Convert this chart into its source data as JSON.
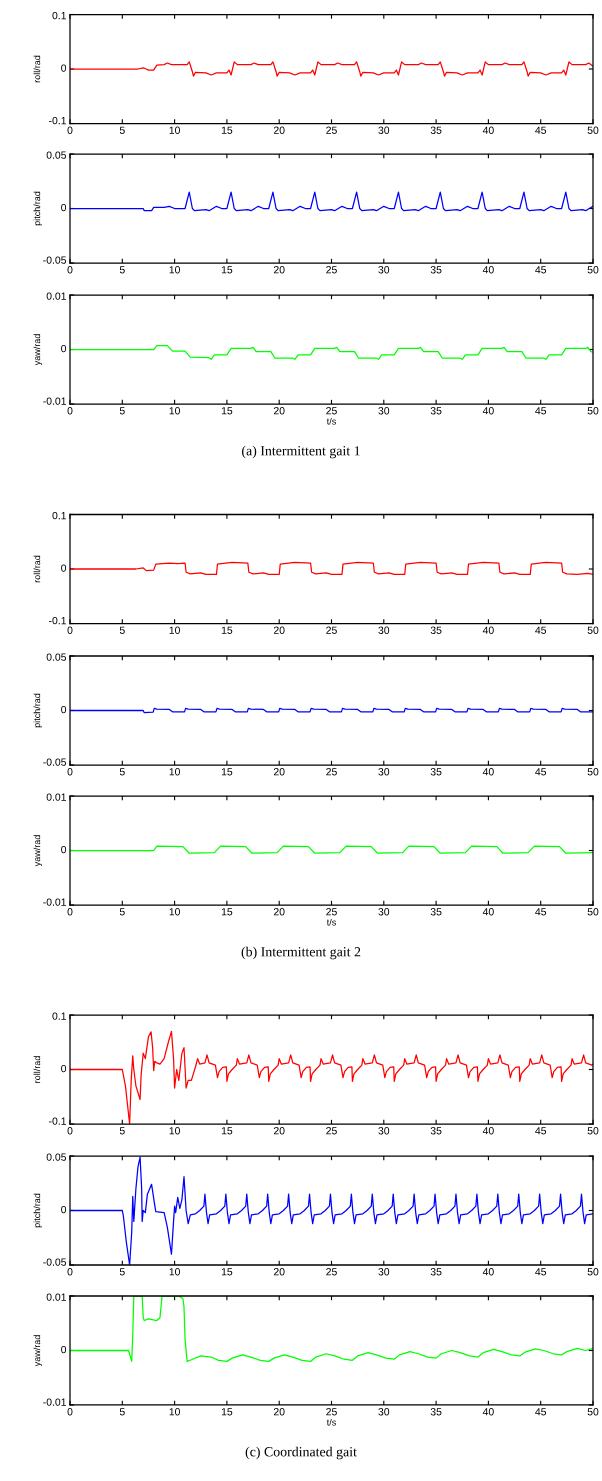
{
  "chart_data": [
    {
      "type": "line",
      "ylabel": "roll/rad",
      "xlim": [
        0,
        50
      ],
      "xticks": [
        0,
        5,
        10,
        15,
        20,
        25,
        30,
        35,
        40,
        45,
        50
      ],
      "ylim": [
        -0.1,
        0.1
      ],
      "yticks": [
        -0.1,
        0,
        0.1
      ],
      "series": [
        {
          "color": "#ff0000",
          "x": [
            0,
            6.5,
            7,
            7.3,
            7.5,
            8,
            8.3,
            9,
            9.3,
            9.7,
            11.2,
            11.4,
            11.7,
            11.8,
            12,
            13,
            13.5,
            14,
            15,
            15.2,
            15.4,
            15.7,
            16,
            17.3,
            17.6,
            18,
            19.2,
            19.4,
            19.7,
            19.8,
            20,
            21,
            21.5,
            22,
            23,
            23.2,
            23.4,
            23.7,
            24,
            25.3,
            25.6,
            26,
            27.2,
            27.4,
            27.7,
            27.8,
            28,
            29,
            29.5,
            30,
            31,
            31.2,
            31.4,
            31.7,
            32,
            33.3,
            33.6,
            34,
            35.2,
            35.4,
            35.7,
            35.8,
            36,
            37,
            37.5,
            38,
            39,
            39.2,
            39.4,
            39.7,
            40,
            41.3,
            41.6,
            42,
            43.2,
            43.4,
            43.7,
            43.8,
            44,
            45,
            45.5,
            46,
            47,
            47.2,
            47.4,
            47.7,
            48,
            49.3,
            49.6,
            50
          ],
          "values": [
            0,
            0,
            0.002,
            0,
            -0.002,
            -0.002,
            0.007,
            0.008,
            0.011,
            0.008,
            0.008,
            0.013,
            -0.005,
            -0.013,
            -0.006,
            -0.007,
            -0.011,
            -0.007,
            -0.007,
            -0.002,
            -0.011,
            0.013,
            0.008,
            0.008,
            0.011,
            0.008,
            0.008,
            0.013,
            -0.005,
            -0.013,
            -0.006,
            -0.007,
            -0.011,
            -0.007,
            -0.007,
            -0.002,
            -0.011,
            0.013,
            0.008,
            0.008,
            0.011,
            0.008,
            0.008,
            0.013,
            -0.005,
            -0.013,
            -0.006,
            -0.007,
            -0.011,
            -0.007,
            -0.007,
            -0.002,
            -0.011,
            0.013,
            0.008,
            0.008,
            0.011,
            0.008,
            0.008,
            0.013,
            -0.005,
            -0.013,
            -0.006,
            -0.007,
            -0.011,
            -0.007,
            -0.007,
            -0.002,
            -0.011,
            0.013,
            0.008,
            0.008,
            0.011,
            0.008,
            0.008,
            0.013,
            -0.005,
            -0.013,
            -0.006,
            -0.007,
            -0.011,
            -0.007,
            -0.007,
            -0.002,
            -0.011,
            0.013,
            0.008,
            0.008,
            0.011,
            0.005
          ]
        }
      ]
    },
    {
      "type": "line",
      "ylabel": "pitch/rad",
      "xlim": [
        0,
        50
      ],
      "xticks": [
        0,
        5,
        10,
        15,
        20,
        25,
        30,
        35,
        40,
        45,
        50
      ],
      "ylim": [
        -0.05,
        0.05
      ],
      "yticks": [
        -0.05,
        0,
        0.05
      ],
      "series": [
        {
          "color": "#0000ff",
          "x": [
            0,
            7,
            7.1,
            7.8,
            8,
            9,
            9.5,
            10,
            11,
            11.4,
            11.7,
            11.9,
            13,
            13.3,
            14,
            14.5,
            15,
            15.4,
            15.7,
            15.9,
            17,
            17.3,
            18,
            18.5,
            19,
            19.4,
            19.7,
            19.9,
            21,
            21.3,
            22,
            22.5,
            23,
            23.4,
            23.7,
            23.9,
            25,
            25.3,
            26,
            26.5,
            27,
            27.4,
            27.7,
            27.9,
            29,
            29.3,
            30,
            30.5,
            31,
            31.4,
            31.7,
            31.9,
            33,
            33.3,
            34,
            34.5,
            35,
            35.4,
            35.7,
            35.9,
            37,
            37.3,
            38,
            38.5,
            39,
            39.4,
            39.7,
            39.9,
            41,
            41.3,
            42,
            42.5,
            43,
            43.4,
            43.7,
            43.9,
            45,
            45.3,
            46,
            46.5,
            47,
            47.4,
            47.7,
            47.9,
            49,
            49.3,
            50
          ],
          "values": [
            0,
            0,
            -0.002,
            -0.002,
            0.001,
            0.001,
            0.002,
            0,
            0,
            0.015,
            0,
            -0.002,
            -0.001,
            -0.002,
            0.002,
            0,
            0,
            0.015,
            0,
            -0.002,
            -0.001,
            -0.002,
            0.002,
            0,
            0,
            0.015,
            0,
            -0.002,
            -0.001,
            -0.002,
            0.002,
            0,
            0,
            0.015,
            0,
            -0.002,
            -0.001,
            -0.002,
            0.002,
            0,
            0,
            0.015,
            0,
            -0.002,
            -0.001,
            -0.002,
            0.002,
            0,
            0,
            0.015,
            0,
            -0.002,
            -0.001,
            -0.002,
            0.002,
            0,
            0,
            0.015,
            0,
            -0.002,
            -0.001,
            -0.002,
            0.002,
            0,
            0,
            0.015,
            0,
            -0.002,
            -0.001,
            -0.002,
            0.002,
            0,
            0,
            0.015,
            0,
            -0.002,
            -0.001,
            -0.002,
            0.002,
            0,
            0,
            0.015,
            0,
            -0.002,
            -0.001,
            -0.002,
            0.002
          ]
        }
      ]
    },
    {
      "type": "line",
      "ylabel": "yaw/rad",
      "xlabel": "t/s",
      "annotations": [
        "(a) Intermittent gait 1"
      ],
      "xlim": [
        0,
        50
      ],
      "xticks": [
        0,
        5,
        10,
        15,
        20,
        25,
        30,
        35,
        40,
        45,
        50
      ],
      "ylim": [
        -0.01,
        0.01
      ],
      "yticks": [
        -0.01,
        0,
        0.01
      ],
      "series": [
        {
          "color": "#00ff00",
          "x": [
            0,
            8,
            8.3,
            9.3,
            9.8,
            11,
            11.5,
            13.3,
            13.5,
            13.8,
            15,
            15.4,
            17.3,
            17.5,
            17.8,
            19.2,
            19.6,
            21.3,
            21.5,
            21.8,
            23,
            23.4,
            25.3,
            25.5,
            25.8,
            27.2,
            27.6,
            29.3,
            29.5,
            29.8,
            31,
            31.4,
            33.3,
            33.5,
            33.8,
            35.2,
            35.6,
            37.3,
            37.5,
            37.8,
            39,
            39.4,
            41.3,
            41.5,
            41.8,
            43.2,
            43.6,
            45.3,
            45.5,
            45.8,
            47,
            47.4,
            49.3,
            49.5,
            49.8,
            50
          ],
          "values": [
            0,
            0,
            0.0007,
            0.0007,
            -0.0003,
            -0.0003,
            -0.0014,
            -0.0015,
            -0.0018,
            -0.001,
            -0.001,
            0.0002,
            0.0002,
            0.0004,
            -0.0004,
            -0.0004,
            -0.0016,
            -0.0016,
            -0.0018,
            -0.001,
            -0.001,
            0.0002,
            0.0002,
            0.0004,
            -0.0004,
            -0.0004,
            -0.0016,
            -0.0016,
            -0.0018,
            -0.001,
            -0.001,
            0.0002,
            0.0002,
            0.0004,
            -0.0004,
            -0.0004,
            -0.0016,
            -0.0016,
            -0.0018,
            -0.001,
            -0.001,
            0.0002,
            0.0002,
            0.0004,
            -0.0004,
            -0.0004,
            -0.0016,
            -0.0016,
            -0.0018,
            -0.001,
            -0.001,
            0.0002,
            0.0002,
            0.0004,
            -0.0004,
            -0.0005
          ]
        }
      ]
    },
    {
      "type": "line",
      "ylabel": "roll/rad",
      "xlim": [
        0,
        50
      ],
      "xticks": [
        0,
        5,
        10,
        15,
        20,
        25,
        30,
        35,
        40,
        45,
        50
      ],
      "ylim": [
        -0.1,
        0.1
      ],
      "yticks": [
        -0.1,
        0,
        0.1
      ],
      "series": [
        {
          "color": "#ff0000",
          "x": [
            0,
            6.3,
            7,
            7.3,
            8,
            8.2,
            9.5,
            10.3,
            11,
            11.1,
            11.5,
            12.5,
            13,
            14,
            14.1,
            15.5,
            17,
            17.1,
            17.5,
            18.5,
            19,
            20,
            20.1,
            21.5,
            23,
            23.1,
            23.5,
            24.5,
            25,
            26,
            26.1,
            27.5,
            29,
            29.1,
            29.5,
            30.5,
            31,
            32,
            32.1,
            33.5,
            35,
            35.1,
            35.5,
            36.5,
            37,
            38,
            38.1,
            39.5,
            41,
            41.1,
            41.5,
            42.5,
            43,
            44,
            44.1,
            45.5,
            47,
            47.1,
            47.5,
            48.5,
            49.5,
            50
          ],
          "values": [
            0,
            0,
            0.002,
            -0.003,
            -0.002,
            0.009,
            0.011,
            0.01,
            0.011,
            -0.006,
            -0.009,
            -0.007,
            -0.01,
            -0.01,
            0.009,
            0.012,
            0.011,
            -0.006,
            -0.009,
            -0.007,
            -0.01,
            -0.01,
            0.009,
            0.012,
            0.011,
            -0.006,
            -0.009,
            -0.007,
            -0.01,
            -0.01,
            0.009,
            0.012,
            0.011,
            -0.006,
            -0.009,
            -0.007,
            -0.01,
            -0.01,
            0.009,
            0.012,
            0.011,
            -0.006,
            -0.009,
            -0.007,
            -0.01,
            -0.01,
            0.009,
            0.012,
            0.011,
            -0.006,
            -0.009,
            -0.007,
            -0.01,
            -0.01,
            0.009,
            0.012,
            0.011,
            -0.006,
            -0.009,
            -0.01,
            -0.008,
            -0.01
          ]
        }
      ]
    },
    {
      "type": "line",
      "ylabel": "pitch/rad",
      "xlim": [
        0,
        50
      ],
      "xticks": [
        0,
        5,
        10,
        15,
        20,
        25,
        30,
        35,
        40,
        45,
        50
      ],
      "ylim": [
        -0.05,
        0.05
      ],
      "yticks": [
        -0.05,
        0,
        0.05
      ],
      "series": [
        {
          "color": "#0000ff",
          "x": [
            0,
            7,
            7.1,
            7.95,
            8.05,
            8.3,
            9.5,
            9.8,
            10.95,
            11.05,
            11.3,
            12.5,
            12.8,
            13.95,
            14.05,
            14.3,
            15.5,
            15.8,
            16.95,
            17.05,
            17.3,
            18.5,
            18.8,
            19.95,
            20.05,
            20.3,
            21.5,
            21.8,
            22.95,
            23.05,
            23.3,
            24.5,
            24.8,
            25.95,
            26.05,
            26.3,
            27.5,
            27.8,
            28.95,
            29.05,
            29.3,
            30.5,
            30.8,
            31.95,
            32.05,
            32.3,
            33.5,
            33.8,
            34.95,
            35.05,
            35.3,
            36.5,
            36.8,
            37.95,
            38.05,
            38.3,
            39.5,
            39.8,
            40.95,
            41.05,
            41.3,
            42.5,
            42.8,
            43.95,
            44.05,
            44.3,
            45.5,
            45.8,
            46.95,
            47.05,
            47.3,
            48.5,
            48.8,
            49.95
          ],
          "values": [
            0,
            0,
            -0.002,
            -0.0015,
            0.002,
            0.0012,
            0.001,
            -0.0012,
            -0.0012,
            0.002,
            0.0012,
            0.001,
            -0.0012,
            -0.0012,
            0.002,
            0.0012,
            0.001,
            -0.0012,
            -0.0012,
            0.002,
            0.0012,
            0.001,
            -0.0012,
            -0.0012,
            0.002,
            0.0012,
            0.001,
            -0.0012,
            -0.0012,
            0.002,
            0.0012,
            0.001,
            -0.0012,
            -0.0012,
            0.002,
            0.0012,
            0.001,
            -0.0012,
            -0.0012,
            0.002,
            0.0012,
            0.001,
            -0.0012,
            -0.0012,
            0.002,
            0.0012,
            0.001,
            -0.0012,
            -0.0012,
            0.002,
            0.0012,
            0.001,
            -0.0012,
            -0.0012,
            0.002,
            0.0012,
            0.001,
            -0.0012,
            -0.0012,
            0.002,
            0.0012,
            0.001,
            -0.0012,
            -0.0012,
            0.002,
            0.0012,
            0.001,
            -0.0012,
            -0.0012,
            0.002,
            0.0012,
            0.001,
            -0.0012,
            -0.0012
          ]
        }
      ]
    },
    {
      "type": "line",
      "ylabel": "yaw/rad",
      "xlabel": "t/s",
      "annotations": [
        "(b) Intermittent gait 2"
      ],
      "xlim": [
        0,
        50
      ],
      "xticks": [
        0,
        5,
        10,
        15,
        20,
        25,
        30,
        35,
        40,
        45,
        50
      ],
      "ylim": [
        -0.01,
        0.01
      ],
      "yticks": [
        -0.01,
        0,
        0.01
      ],
      "series": [
        {
          "color": "#00ff00",
          "x": [
            0,
            8,
            8.3,
            10.8,
            11.4,
            13.8,
            14.4,
            16.8,
            17.4,
            19.8,
            20.4,
            22.8,
            23.4,
            25.8,
            26.4,
            28.8,
            29.4,
            31.8,
            32.4,
            34.8,
            35.4,
            37.8,
            38.4,
            40.8,
            41.4,
            43.8,
            44.4,
            46.8,
            47.4,
            50
          ],
          "values": [
            0,
            0,
            0.0008,
            0.0007,
            -0.0005,
            -0.0004,
            0.0008,
            0.0007,
            -0.0005,
            -0.0004,
            0.0008,
            0.0007,
            -0.0005,
            -0.0004,
            0.0008,
            0.0007,
            -0.0005,
            -0.0004,
            0.0008,
            0.0007,
            -0.0005,
            -0.0004,
            0.0008,
            0.0007,
            -0.0005,
            -0.0004,
            0.0008,
            0.0007,
            -0.0005,
            -0.0004
          ]
        }
      ]
    },
    {
      "type": "line",
      "ylabel": "roll/rad",
      "xlim": [
        0,
        50
      ],
      "xticks": [
        0,
        5,
        10,
        15,
        20,
        25,
        30,
        35,
        40,
        45,
        50
      ],
      "ylim": [
        -0.1,
        0.1
      ],
      "yticks": [
        -0.1,
        0,
        0.1
      ],
      "series": [
        {
          "color": "#ff0000",
          "x": [
            0,
            5.0,
            5.3,
            5.7,
            5.85,
            6.0,
            6.1,
            6.3,
            6.7,
            6.8,
            7.0,
            7.2,
            7.5,
            7.75,
            7.9,
            8.0,
            8.1,
            8.3,
            8.6,
            9.0,
            9.4,
            9.7,
            9.9,
            10.0,
            10.2,
            10.4,
            10.7,
            10.9,
            11.1,
            11.3,
            11.6,
            12.0,
            12.2,
            12.4,
            12.9,
            13.1,
            13.3,
            13.9,
            14.1,
            14.25,
            14.6,
            14.95,
            15,
            15.15,
            15.5,
            15.9,
            16,
            16.2,
            16.9,
            17.1,
            17.3,
            17.9,
            18.1,
            18.25,
            18.6,
            18.95,
            19,
            19.15,
            19.5,
            19.9,
            20,
            20.2,
            20.9,
            21.1,
            21.3,
            21.9,
            22.1,
            22.25,
            22.6,
            22.95,
            23,
            23.15,
            23.5,
            23.9,
            24,
            24.2,
            24.9,
            25.1,
            25.3,
            25.9,
            26.1,
            26.25,
            26.6,
            26.95,
            27,
            27.15,
            27.5,
            27.9,
            28,
            28.2,
            28.9,
            29.1,
            29.3,
            29.9,
            30.1,
            30.25,
            30.6,
            30.95,
            31,
            31.15,
            31.5,
            31.9,
            32,
            32.2,
            32.9,
            33.1,
            33.3,
            33.9,
            34.1,
            34.25,
            34.6,
            34.95,
            35,
            35.15,
            35.5,
            35.9,
            36,
            36.2,
            36.9,
            37.1,
            37.3,
            37.9,
            38.1,
            38.25,
            38.6,
            38.95,
            39,
            39.15,
            39.5,
            39.9,
            40,
            40.2,
            40.9,
            41.1,
            41.3,
            41.9,
            42.1,
            42.25,
            42.6,
            42.95,
            43,
            43.15,
            43.5,
            43.9,
            44,
            44.2,
            44.9,
            45.1,
            45.3,
            45.9,
            46.1,
            46.25,
            46.6,
            46.95,
            47,
            47.15,
            47.5,
            47.9,
            48,
            48.2,
            48.9,
            49.1,
            49.3,
            49.9,
            50
          ],
          "values": [
            0,
            0,
            -0.03,
            -0.1,
            -0.02,
            0.025,
            0.0,
            -0.03,
            -0.055,
            -0.01,
            0.03,
            0.02,
            0.06,
            0.069,
            0.04,
            -0.002,
            0.015,
            0.012,
            0.01,
            0.02,
            0.05,
            0.07,
            0.02,
            -0.034,
            0.0,
            -0.02,
            0.03,
            0.04,
            -0.034,
            -0.02,
            -0.02,
            0.005,
            0.02,
            0.01,
            0.012,
            0.027,
            0.012,
            0.008,
            -0.015,
            -0.004,
            0.004,
            0.005,
            -0.022,
            -0.008,
            0.0,
            0.008,
            0.02,
            0.01,
            0.012,
            0.027,
            0.012,
            0.008,
            -0.015,
            -0.004,
            0.004,
            0.005,
            -0.022,
            -0.008,
            0.0,
            0.008,
            0.02,
            0.01,
            0.012,
            0.027,
            0.012,
            0.008,
            -0.015,
            -0.004,
            0.004,
            0.005,
            -0.022,
            -0.008,
            0.0,
            0.008,
            0.02,
            0.01,
            0.012,
            0.027,
            0.012,
            0.008,
            -0.015,
            -0.004,
            0.004,
            0.005,
            -0.022,
            -0.008,
            0.0,
            0.008,
            0.02,
            0.01,
            0.012,
            0.027,
            0.012,
            0.008,
            -0.015,
            -0.004,
            0.004,
            0.005,
            -0.022,
            -0.008,
            0.0,
            0.008,
            0.02,
            0.01,
            0.012,
            0.027,
            0.012,
            0.008,
            -0.015,
            -0.004,
            0.004,
            0.005,
            -0.022,
            -0.008,
            0.0,
            0.008,
            0.02,
            0.01,
            0.012,
            0.027,
            0.012,
            0.008,
            -0.015,
            -0.004,
            0.004,
            0.005,
            -0.022,
            -0.008,
            0.0,
            0.008,
            0.02,
            0.01,
            0.012,
            0.027,
            0.012,
            0.008,
            -0.015,
            -0.004,
            0.004,
            0.005,
            -0.022,
            -0.008,
            0.0,
            0.008,
            0.02,
            0.01,
            0.012,
            0.027,
            0.012,
            0.008,
            -0.015,
            -0.004,
            0.004,
            0.005,
            -0.022,
            -0.008,
            0.0,
            0.008,
            0.02,
            0.01,
            0.012,
            0.027,
            0.012,
            0.008,
            0.01
          ]
        }
      ]
    },
    {
      "type": "line",
      "ylabel": "pitch/rad",
      "xlim": [
        0,
        50
      ],
      "xticks": [
        0,
        5,
        10,
        15,
        20,
        25,
        30,
        35,
        40,
        45,
        50
      ],
      "ylim": [
        -0.05,
        0.05
      ],
      "yticks": [
        -0.05,
        0,
        0.05
      ],
      "series": [
        {
          "color": "#0000ff",
          "x": [
            0,
            5.0,
            5.1,
            5.4,
            5.7,
            5.9,
            6.0,
            6.1,
            6.3,
            6.5,
            6.7,
            6.85,
            6.9,
            7.0,
            7.2,
            7.4,
            7.8,
            8.1,
            8.2,
            9.0,
            9.3,
            9.7,
            9.9,
            10.0,
            10.1,
            10.3,
            10.5,
            10.7,
            10.9,
            11.1,
            11.3,
            11.5,
            12.0,
            12.4,
            12.8,
            12.9,
            13.05,
            13.2,
            13.35,
            14.0,
            14.4,
            14.8,
            14.9,
            15.05,
            15.2,
            15.35,
            16.0,
            16.4,
            16.8,
            16.9,
            17.05,
            17.2,
            17.35,
            18.0,
            18.4,
            18.8,
            18.9,
            19.05,
            19.2,
            19.35,
            20.0,
            20.4,
            20.8,
            20.9,
            21.05,
            21.2,
            21.35,
            22.0,
            22.4,
            22.8,
            22.9,
            23.05,
            23.2,
            23.35,
            24.0,
            24.4,
            24.8,
            24.9,
            25.05,
            25.2,
            25.35,
            26.0,
            26.4,
            26.8,
            26.9,
            27.05,
            27.2,
            27.35,
            28.0,
            28.4,
            28.8,
            28.9,
            29.05,
            29.2,
            29.35,
            30.0,
            30.4,
            30.8,
            30.9,
            31.05,
            31.2,
            31.35,
            32.0,
            32.4,
            32.8,
            32.9,
            33.05,
            33.2,
            33.35,
            34.0,
            34.4,
            34.8,
            34.9,
            35.05,
            35.2,
            35.35,
            36.0,
            36.4,
            36.8,
            36.9,
            37.05,
            37.2,
            37.35,
            38.0,
            38.4,
            38.8,
            38.9,
            39.05,
            39.2,
            39.35,
            40.0,
            40.4,
            40.8,
            40.9,
            41.05,
            41.2,
            41.35,
            42.0,
            42.4,
            42.8,
            42.9,
            43.05,
            43.2,
            43.35,
            44.0,
            44.4,
            44.8,
            44.9,
            45.05,
            45.2,
            45.35,
            46.0,
            46.4,
            46.8,
            46.9,
            47.05,
            47.2,
            47.35,
            48.0,
            48.4,
            48.8,
            48.9,
            49.05,
            49.2,
            49.35,
            50
          ],
          "values": [
            0,
            0,
            -0.005,
            -0.03,
            -0.05,
            -0.02,
            0.013,
            -0.01,
            0.02,
            0.04,
            0.049,
            0.02,
            -0.01,
            0.0,
            -0.002,
            0.015,
            0.024,
            0.005,
            -0.001,
            -0.002,
            -0.015,
            -0.04,
            -0.01,
            0.004,
            -0.002,
            0.012,
            0.002,
            0.01,
            0.031,
            0.0,
            -0.012,
            -0.004,
            -0.003,
            0.0,
            0.004,
            0.015,
            -0.002,
            -0.012,
            -0.004,
            -0.003,
            0.0,
            0.004,
            0.015,
            -0.002,
            -0.012,
            -0.004,
            -0.003,
            0.0,
            0.004,
            0.015,
            -0.002,
            -0.012,
            -0.004,
            -0.003,
            0.0,
            0.004,
            0.015,
            -0.002,
            -0.012,
            -0.004,
            -0.003,
            0.0,
            0.004,
            0.015,
            -0.002,
            -0.012,
            -0.004,
            -0.003,
            0.0,
            0.004,
            0.015,
            -0.002,
            -0.012,
            -0.004,
            -0.003,
            0.0,
            0.004,
            0.015,
            -0.002,
            -0.012,
            -0.004,
            -0.003,
            0.0,
            0.004,
            0.015,
            -0.002,
            -0.012,
            -0.004,
            -0.003,
            0.0,
            0.004,
            0.015,
            -0.002,
            -0.012,
            -0.004,
            -0.003,
            0.0,
            0.004,
            0.015,
            -0.002,
            -0.012,
            -0.004,
            -0.003,
            0.0,
            0.004,
            0.015,
            -0.002,
            -0.012,
            -0.004,
            -0.003,
            0.0,
            0.004,
            0.015,
            -0.002,
            -0.012,
            -0.004,
            -0.003,
            0.0,
            0.004,
            0.015,
            -0.002,
            -0.012,
            -0.004,
            -0.003,
            0.0,
            0.004,
            0.015,
            -0.002,
            -0.012,
            -0.004,
            -0.003,
            0.0,
            0.004,
            0.015,
            -0.002,
            -0.012,
            -0.004,
            -0.003,
            0.0,
            0.004,
            0.015,
            -0.002,
            -0.012,
            -0.004,
            -0.003,
            0.0,
            0.004,
            0.015,
            -0.002,
            -0.012,
            -0.004,
            -0.003,
            0.0,
            0.004,
            0.015,
            -0.002,
            -0.012,
            -0.004,
            -0.003,
            0.0,
            0.004,
            0.015,
            -0.002,
            -0.012,
            -0.004,
            -0.003
          ]
        }
      ]
    },
    {
      "type": "line",
      "ylabel": "yaw/rad",
      "xlabel": "t/s",
      "annotations": [
        "(c) Coordinated gait"
      ],
      "xlim": [
        0,
        50
      ],
      "xticks": [
        0,
        5,
        10,
        15,
        20,
        25,
        30,
        35,
        40,
        45,
        50
      ],
      "ylim": [
        -0.01,
        0.01
      ],
      "yticks": [
        -0.01,
        0,
        0.01
      ],
      "series": [
        {
          "color": "#00ff00",
          "x": [
            0,
            5.6,
            5.9,
            6.0,
            6.1,
            6.7,
            6.9,
            7.0,
            7.1,
            7.5,
            8.3,
            8.6,
            8.8,
            10.4,
            10.8,
            10.9,
            11.0,
            11.2,
            11.6,
            12.5,
            13.5,
            14.2,
            15.0,
            15.5,
            16.5,
            17.3,
            18.2,
            19.0,
            19.5,
            20.5,
            21.3,
            22.2,
            23.0,
            23.5,
            24.5,
            25.3,
            26.2,
            27.0,
            27.5,
            28.5,
            29.3,
            30.2,
            31.0,
            31.5,
            32.5,
            33.3,
            34.2,
            35,
            35.5,
            36.5,
            37.3,
            38.2,
            39,
            39.5,
            40.5,
            41.3,
            42.2,
            43,
            43.5,
            44.5,
            45.3,
            46.2,
            47,
            47.5,
            48.5,
            49.3,
            50
          ],
          "values": [
            0,
            0,
            -0.002,
            0.003,
            0.01,
            0.01,
            0.01,
            0.006,
            0.0055,
            0.0058,
            0.0055,
            0.006,
            0.01,
            0.01,
            0.0095,
            0.008,
            0.002,
            -0.002,
            -0.0017,
            -0.001,
            -0.0012,
            -0.0018,
            -0.002,
            -0.0014,
            -0.0008,
            -0.0012,
            -0.0018,
            -0.002,
            -0.0014,
            -0.0008,
            -0.0012,
            -0.0018,
            -0.002,
            -0.0012,
            -0.0006,
            -0.001,
            -0.0016,
            -0.0018,
            -0.001,
            -0.0004,
            -0.0008,
            -0.0014,
            -0.0016,
            -0.0008,
            -0.0002,
            -0.0006,
            -0.0012,
            -0.0014,
            -0.0006,
            0.0,
            -0.0004,
            -0.001,
            -0.0012,
            -0.0004,
            0.0002,
            -0.0002,
            -0.0008,
            -0.001,
            -0.0003,
            0.0003,
            0.0,
            -0.0006,
            -0.0008,
            -0.0002,
            0.0004,
            0.0,
            0.0004
          ]
        }
      ]
    }
  ]
}
